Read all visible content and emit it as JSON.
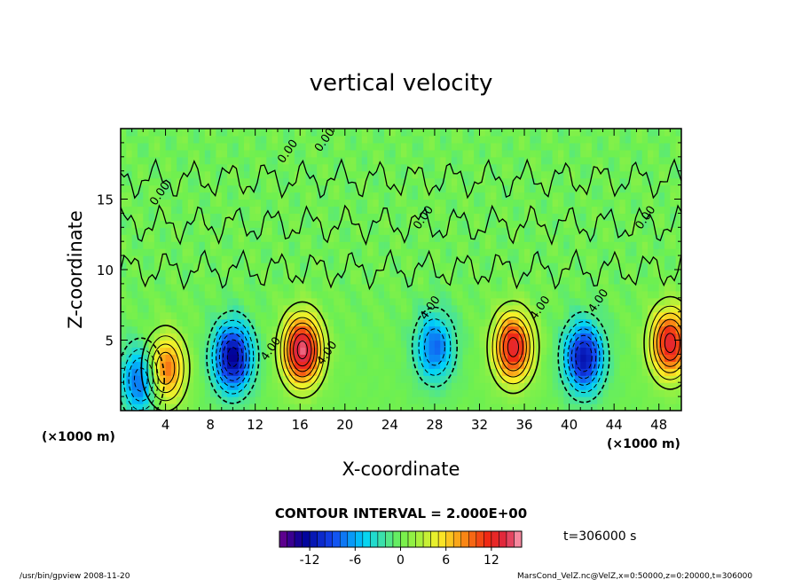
{
  "chart_data": {
    "type": "heatmap",
    "title": "vertical velocity",
    "xlabel": "X-coordinate",
    "ylabel": "Z-coordinate",
    "xunit": "(×1000 m)",
    "zunit": "(×1000 m)",
    "xlim": [
      0,
      50
    ],
    "ylim": [
      0,
      20
    ],
    "xticks": [
      4,
      8,
      12,
      16,
      20,
      24,
      28,
      32,
      36,
      40,
      44,
      48
    ],
    "yticks": [
      5,
      10,
      15
    ],
    "contour_interval_text": "CONTOUR INTERVAL = 2.000E+00",
    "time_text": "t=306000 s",
    "colorbar": {
      "range": [
        -16,
        16
      ],
      "ticks": [
        -12,
        -6,
        0,
        6,
        12
      ]
    },
    "contour_labels": [
      {
        "text": "0.00",
        "x": 14.5,
        "z": 17.5
      },
      {
        "text": "0.00",
        "x": 17.8,
        "z": 18.3
      },
      {
        "text": "0.00",
        "x": 3.1,
        "z": 14.5
      },
      {
        "text": "0.00",
        "x": 26.6,
        "z": 12.8
      },
      {
        "text": "0.00",
        "x": 46.4,
        "z": 12.8
      },
      {
        "text": "4.00",
        "x": 13.0,
        "z": 3.5
      },
      {
        "text": "4.00",
        "x": 18.0,
        "z": 3.2
      },
      {
        "text": "4.00",
        "x": 27.2,
        "z": 6.4
      },
      {
        "text": "4.00",
        "x": 37.0,
        "z": 6.4
      },
      {
        "text": "4.00",
        "x": 42.2,
        "z": 6.9
      }
    ],
    "features": [
      {
        "x": 1.8,
        "z": 2.2,
        "w": -9
      },
      {
        "x": 4.0,
        "z": 3.0,
        "w": 10
      },
      {
        "x": 10.0,
        "z": 3.8,
        "w": -13
      },
      {
        "x": 16.2,
        "z": 4.3,
        "w": 15
      },
      {
        "x": 28.0,
        "z": 4.5,
        "w": -8
      },
      {
        "x": 35.0,
        "z": 4.5,
        "w": 13
      },
      {
        "x": 41.3,
        "z": 3.8,
        "w": -12
      },
      {
        "x": 49.0,
        "z": 4.8,
        "w": 13
      }
    ],
    "grid": false,
    "legend": "bottom"
  },
  "footer": {
    "left": "/usr/bin/gpview   2008-11-20",
    "right": "MarsCond_VelZ.nc@VelZ,x=0:50000,z=0:20000,t=306000"
  }
}
